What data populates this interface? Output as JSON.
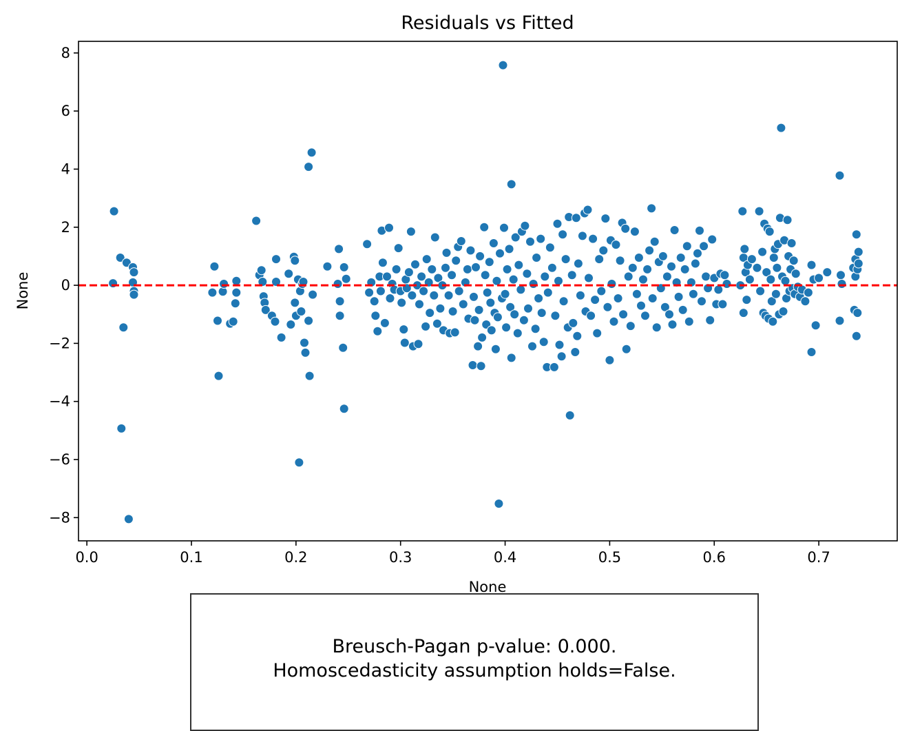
{
  "chart_data": {
    "type": "scatter",
    "title": "Residuals vs Fitted",
    "xlabel": "None",
    "ylabel": "None",
    "xlim": [
      -0.008,
      0.775
    ],
    "ylim": [
      -8.8,
      8.4
    ],
    "x_ticks": [
      0.0,
      0.1,
      0.2,
      0.3,
      0.4,
      0.5,
      0.6,
      0.7
    ],
    "x_tick_labels": [
      "0.0",
      "0.1",
      "0.2",
      "0.3",
      "0.4",
      "0.5",
      "0.6",
      "0.7"
    ],
    "y_ticks": [
      -8,
      -6,
      -4,
      -2,
      0,
      2,
      4,
      6,
      8
    ],
    "y_tick_labels": [
      "−8",
      "−6",
      "−4",
      "−2",
      "0",
      "2",
      "4",
      "6",
      "8"
    ],
    "reference_line": {
      "y": 0,
      "style": "dashed",
      "color": "#ff0000"
    },
    "marker_color": "#1f77b4",
    "grid": false,
    "approximate_point_count": 1000,
    "points": [
      [
        0.026,
        2.55
      ],
      [
        0.025,
        0.07
      ],
      [
        0.032,
        0.95
      ],
      [
        0.035,
        -1.45
      ],
      [
        0.038,
        0.78
      ],
      [
        0.044,
        0.62
      ],
      [
        0.045,
        0.45
      ],
      [
        0.044,
        0.1
      ],
      [
        0.045,
        -0.2
      ],
      [
        0.045,
        -0.32
      ],
      [
        0.033,
        -4.93
      ],
      [
        0.04,
        -8.05
      ],
      [
        0.12,
        -0.25
      ],
      [
        0.122,
        0.65
      ],
      [
        0.125,
        -1.22
      ],
      [
        0.126,
        -3.12
      ],
      [
        0.13,
        -0.22
      ],
      [
        0.131,
        0.05
      ],
      [
        0.137,
        -1.32
      ],
      [
        0.14,
        -1.25
      ],
      [
        0.142,
        -0.62
      ],
      [
        0.143,
        -0.25
      ],
      [
        0.143,
        0.15
      ],
      [
        0.162,
        2.22
      ],
      [
        0.165,
        0.35
      ],
      [
        0.167,
        0.52
      ],
      [
        0.168,
        0.12
      ],
      [
        0.169,
        -0.38
      ],
      [
        0.17,
        -0.6
      ],
      [
        0.171,
        -0.85
      ],
      [
        0.177,
        -1.05
      ],
      [
        0.18,
        -1.25
      ],
      [
        0.181,
        0.12
      ],
      [
        0.181,
        0.9
      ],
      [
        0.186,
        -1.8
      ],
      [
        0.193,
        0.4
      ],
      [
        0.195,
        -1.35
      ],
      [
        0.198,
        0.98
      ],
      [
        0.199,
        0.85
      ],
      [
        0.199,
        -0.6
      ],
      [
        0.2,
        -1.05
      ],
      [
        0.202,
        0.2
      ],
      [
        0.203,
        -6.1
      ],
      [
        0.204,
        -0.2
      ],
      [
        0.205,
        -0.9
      ],
      [
        0.206,
        0.05
      ],
      [
        0.207,
        0.12
      ],
      [
        0.208,
        -1.98
      ],
      [
        0.209,
        -2.32
      ],
      [
        0.212,
        4.08
      ],
      [
        0.212,
        -1.22
      ],
      [
        0.213,
        -3.12
      ],
      [
        0.215,
        4.57
      ],
      [
        0.216,
        -0.32
      ],
      [
        0.23,
        0.65
      ],
      [
        0.24,
        0.05
      ],
      [
        0.241,
        1.25
      ],
      [
        0.242,
        -0.55
      ],
      [
        0.242,
        -1.05
      ],
      [
        0.246,
        0.62
      ],
      [
        0.245,
        -2.15
      ],
      [
        0.246,
        -4.25
      ],
      [
        0.248,
        0.22
      ],
      [
        0.268,
        1.42
      ],
      [
        0.27,
        -0.25
      ],
      [
        0.272,
        0.1
      ],
      [
        0.275,
        -0.55
      ],
      [
        0.276,
        -1.05
      ],
      [
        0.278,
        -1.58
      ],
      [
        0.28,
        0.3
      ],
      [
        0.281,
        -0.2
      ],
      [
        0.282,
        1.88
      ],
      [
        0.283,
        0.78
      ],
      [
        0.285,
        -1.3
      ],
      [
        0.287,
        0.3
      ],
      [
        0.289,
        1.98
      ],
      [
        0.29,
        -0.45
      ],
      [
        0.292,
        0.05
      ],
      [
        0.294,
        -0.15
      ],
      [
        0.296,
        0.55
      ],
      [
        0.298,
        1.28
      ],
      [
        0.3,
        -0.2
      ],
      [
        0.301,
        -0.6
      ],
      [
        0.303,
        -1.52
      ],
      [
        0.304,
        -1.98
      ],
      [
        0.305,
        0.2
      ],
      [
        0.306,
        -0.1
      ],
      [
        0.308,
        0.45
      ],
      [
        0.31,
        1.85
      ],
      [
        0.311,
        -0.35
      ],
      [
        0.312,
        -2.1
      ],
      [
        0.314,
        0.72
      ],
      [
        0.316,
        0.0
      ],
      [
        0.317,
        -2.02
      ],
      [
        0.318,
        -0.65
      ],
      [
        0.32,
        0.3
      ],
      [
        0.322,
        -0.2
      ],
      [
        0.324,
        -1.42
      ],
      [
        0.325,
        0.9
      ],
      [
        0.327,
        0.1
      ],
      [
        0.328,
        -0.95
      ],
      [
        0.33,
        0.55
      ],
      [
        0.332,
        -0.35
      ],
      [
        0.333,
        1.65
      ],
      [
        0.335,
        -1.32
      ],
      [
        0.336,
        0.25
      ],
      [
        0.338,
        -0.8
      ],
      [
        0.34,
        0.0
      ],
      [
        0.341,
        -1.55
      ],
      [
        0.343,
        0.6
      ],
      [
        0.344,
        1.12
      ],
      [
        0.346,
        -0.35
      ],
      [
        0.347,
        -1.65
      ],
      [
        0.349,
        0.35
      ],
      [
        0.35,
        -0.9
      ],
      [
        0.352,
        -1.62
      ],
      [
        0.353,
        0.85
      ],
      [
        0.355,
        1.32
      ],
      [
        0.356,
        -0.2
      ],
      [
        0.358,
        1.52
      ],
      [
        0.36,
        -0.65
      ],
      [
        0.362,
        0.1
      ],
      [
        0.364,
        0.55
      ],
      [
        0.365,
        -1.15
      ],
      [
        0.367,
        1.2
      ],
      [
        0.369,
        -2.75
      ],
      [
        0.37,
        -0.4
      ],
      [
        0.371,
        -1.2
      ],
      [
        0.372,
        0.62
      ],
      [
        0.374,
        -2.1
      ],
      [
        0.375,
        -0.85
      ],
      [
        0.376,
        1.0
      ],
      [
        0.377,
        -2.78
      ],
      [
        0.378,
        -1.8
      ],
      [
        0.38,
        2.0
      ],
      [
        0.381,
        0.35
      ],
      [
        0.382,
        -1.35
      ],
      [
        0.383,
        -0.25
      ],
      [
        0.385,
        0.8
      ],
      [
        0.386,
        -0.6
      ],
      [
        0.387,
        -1.55
      ],
      [
        0.389,
        1.45
      ],
      [
        0.39,
        -0.95
      ],
      [
        0.391,
        -2.2
      ],
      [
        0.392,
        0.15
      ],
      [
        0.393,
        -1.1
      ],
      [
        0.394,
        -7.52
      ],
      [
        0.395,
        1.1
      ],
      [
        0.397,
        -0.45
      ],
      [
        0.398,
        7.58
      ],
      [
        0.399,
        1.98
      ],
      [
        0.4,
        -0.3
      ],
      [
        0.401,
        -1.45
      ],
      [
        0.402,
        0.55
      ],
      [
        0.404,
        1.25
      ],
      [
        0.405,
        -0.75
      ],
      [
        0.406,
        3.48
      ],
      [
        0.406,
        -2.5
      ],
      [
        0.408,
        0.2
      ],
      [
        0.409,
        -1.0
      ],
      [
        0.41,
        1.65
      ],
      [
        0.412,
        -1.65
      ],
      [
        0.413,
        0.7
      ],
      [
        0.415,
        -0.15
      ],
      [
        0.416,
        1.85
      ],
      [
        0.418,
        -1.2
      ],
      [
        0.419,
        2.05
      ],
      [
        0.421,
        0.4
      ],
      [
        0.422,
        -0.8
      ],
      [
        0.424,
        1.5
      ],
      [
        0.426,
        -2.1
      ],
      [
        0.427,
        0.05
      ],
      [
        0.429,
        -1.5
      ],
      [
        0.43,
        0.95
      ],
      [
        0.432,
        -0.45
      ],
      [
        0.434,
        1.6
      ],
      [
        0.435,
        -0.95
      ],
      [
        0.437,
        -1.95
      ],
      [
        0.438,
        0.3
      ],
      [
        0.44,
        -2.82
      ],
      [
        0.441,
        -0.25
      ],
      [
        0.443,
        1.3
      ],
      [
        0.445,
        0.6
      ],
      [
        0.447,
        -2.82
      ],
      [
        0.448,
        -1.05
      ],
      [
        0.45,
        2.12
      ],
      [
        0.451,
        0.15
      ],
      [
        0.452,
        -2.05
      ],
      [
        0.454,
        -2.45
      ],
      [
        0.455,
        1.75
      ],
      [
        0.456,
        -0.55
      ],
      [
        0.458,
        0.9
      ],
      [
        0.46,
        -1.45
      ],
      [
        0.461,
        2.35
      ],
      [
        0.462,
        -4.48
      ],
      [
        0.464,
        0.35
      ],
      [
        0.465,
        -1.3
      ],
      [
        0.467,
        -2.3
      ],
      [
        0.468,
        2.32
      ],
      [
        0.469,
        -1.75
      ],
      [
        0.47,
        0.75
      ],
      [
        0.472,
        -0.35
      ],
      [
        0.474,
        1.7
      ],
      [
        0.476,
        2.48
      ],
      [
        0.477,
        -0.9
      ],
      [
        0.479,
        2.6
      ],
      [
        0.48,
        0.25
      ],
      [
        0.482,
        -1.05
      ],
      [
        0.484,
        1.6
      ],
      [
        0.486,
        -0.5
      ],
      [
        0.488,
        -1.65
      ],
      [
        0.49,
        0.9
      ],
      [
        0.492,
        -0.2
      ],
      [
        0.494,
        1.2
      ],
      [
        0.496,
        2.3
      ],
      [
        0.498,
        -0.75
      ],
      [
        0.5,
        -2.58
      ],
      [
        0.501,
        1.55
      ],
      [
        0.502,
        0.05
      ],
      [
        0.504,
        -1.25
      ],
      [
        0.506,
        1.4
      ],
      [
        0.508,
        -0.45
      ],
      [
        0.51,
        0.85
      ],
      [
        0.512,
        2.15
      ],
      [
        0.513,
        -1.0
      ],
      [
        0.515,
        1.95
      ],
      [
        0.516,
        -2.2
      ],
      [
        0.518,
        0.3
      ],
      [
        0.52,
        -1.4
      ],
      [
        0.522,
        0.6
      ],
      [
        0.524,
        1.85
      ],
      [
        0.526,
        -0.3
      ],
      [
        0.528,
        0.95
      ],
      [
        0.53,
        -0.7
      ],
      [
        0.532,
        0.2
      ],
      [
        0.534,
        -1.05
      ],
      [
        0.536,
        0.55
      ],
      [
        0.538,
        1.2
      ],
      [
        0.54,
        2.65
      ],
      [
        0.541,
        -0.45
      ],
      [
        0.543,
        1.5
      ],
      [
        0.545,
        -1.45
      ],
      [
        0.547,
        0.8
      ],
      [
        0.549,
        -0.1
      ],
      [
        0.551,
        1.0
      ],
      [
        0.553,
        -0.75
      ],
      [
        0.555,
        0.3
      ],
      [
        0.557,
        -1.0
      ],
      [
        0.559,
        0.65
      ],
      [
        0.56,
        -1.35
      ],
      [
        0.562,
        1.9
      ],
      [
        0.564,
        0.1
      ],
      [
        0.566,
        -0.4
      ],
      [
        0.568,
        0.95
      ],
      [
        0.57,
        -0.85
      ],
      [
        0.572,
        0.55
      ],
      [
        0.574,
        1.35
      ],
      [
        0.576,
        -1.25
      ],
      [
        0.578,
        0.1
      ],
      [
        0.58,
        -0.3
      ],
      [
        0.582,
        0.75
      ],
      [
        0.584,
        1.1
      ],
      [
        0.586,
        1.88
      ],
      [
        0.588,
        -0.55
      ],
      [
        0.59,
        1.35
      ],
      [
        0.592,
        0.3
      ],
      [
        0.594,
        -0.1
      ],
      [
        0.596,
        -1.2
      ],
      [
        0.598,
        1.58
      ],
      [
        0.6,
        0.25
      ],
      [
        0.602,
        -0.65
      ],
      [
        0.604,
        -0.15
      ],
      [
        0.606,
        0.4
      ],
      [
        0.608,
        -0.65
      ],
      [
        0.61,
        0.35
      ],
      [
        0.612,
        0.05
      ],
      [
        0.625,
        0.0
      ],
      [
        0.627,
        2.55
      ],
      [
        0.628,
        -0.95
      ],
      [
        0.628,
        0.95
      ],
      [
        0.629,
        1.25
      ],
      [
        0.63,
        0.45
      ],
      [
        0.631,
        -0.5
      ],
      [
        0.632,
        0.7
      ],
      [
        0.634,
        0.2
      ],
      [
        0.636,
        0.9
      ],
      [
        0.641,
        0.6
      ],
      [
        0.643,
        2.55
      ],
      [
        0.644,
        -0.2
      ],
      [
        0.646,
        1.15
      ],
      [
        0.647,
        -0.95
      ],
      [
        0.648,
        2.12
      ],
      [
        0.649,
        -1.05
      ],
      [
        0.65,
        0.45
      ],
      [
        0.651,
        1.95
      ],
      [
        0.652,
        -1.15
      ],
      [
        0.653,
        1.85
      ],
      [
        0.654,
        0.2
      ],
      [
        0.655,
        -0.55
      ],
      [
        0.656,
        -1.25
      ],
      [
        0.657,
        0.95
      ],
      [
        0.658,
        1.25
      ],
      [
        0.659,
        -0.3
      ],
      [
        0.66,
        0.6
      ],
      [
        0.661,
        1.42
      ],
      [
        0.662,
        -1.0
      ],
      [
        0.663,
        2.32
      ],
      [
        0.664,
        5.42
      ],
      [
        0.665,
        0.3
      ],
      [
        0.666,
        -0.9
      ],
      [
        0.667,
        1.55
      ],
      [
        0.668,
        0.15
      ],
      [
        0.669,
        -0.45
      ],
      [
        0.67,
        2.25
      ],
      [
        0.671,
        1.0
      ],
      [
        0.672,
        -0.2
      ],
      [
        0.673,
        0.55
      ],
      [
        0.674,
        1.45
      ],
      [
        0.675,
        -0.1
      ],
      [
        0.676,
        0.85
      ],
      [
        0.677,
        -0.3
      ],
      [
        0.678,
        0.4
      ],
      [
        0.68,
        -0.05
      ],
      [
        0.682,
        -0.4
      ],
      [
        0.684,
        -0.15
      ],
      [
        0.687,
        -0.55
      ],
      [
        0.69,
        -0.25
      ],
      [
        0.693,
        0.7
      ],
      [
        0.693,
        -2.3
      ],
      [
        0.695,
        0.2
      ],
      [
        0.697,
        -1.38
      ],
      [
        0.7,
        0.25
      ],
      [
        0.708,
        0.45
      ],
      [
        0.72,
        3.78
      ],
      [
        0.72,
        -1.22
      ],
      [
        0.721,
        0.35
      ],
      [
        0.722,
        0.05
      ],
      [
        0.733,
        0.6
      ],
      [
        0.734,
        -0.85
      ],
      [
        0.735,
        0.3
      ],
      [
        0.735,
        0.9
      ],
      [
        0.736,
        -1.75
      ],
      [
        0.736,
        1.75
      ],
      [
        0.737,
        -0.95
      ],
      [
        0.737,
        0.55
      ],
      [
        0.738,
        1.15
      ],
      [
        0.738,
        0.75
      ]
    ]
  },
  "note": {
    "text": "Breusch-Pagan p-value: 0.000.\n Homoscedasticity assumption holds=False."
  }
}
